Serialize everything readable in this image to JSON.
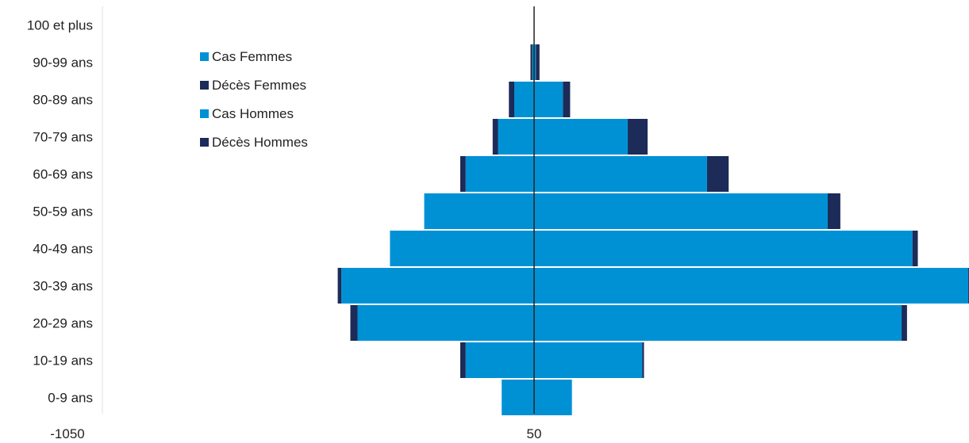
{
  "chart_data": {
    "type": "bar",
    "orientation": "horizontal",
    "layout": "population-pyramid",
    "categories": [
      "0-9 ans",
      "10-19 ans",
      "20-29 ans",
      "30-39 ans",
      "40-49 ans",
      "50-59 ans",
      "60-69 ans",
      "70-79 ans",
      "80-89 ans",
      "90-99 ans",
      "100 et plus"
    ],
    "series": [
      {
        "name": "Cas Femmes",
        "side": "left",
        "color": "#0091d5",
        "values": [
          18,
          38,
          98,
          107,
          80,
          61,
          38,
          20,
          11,
          1,
          0
        ]
      },
      {
        "name": "Décès Femmes",
        "side": "left",
        "color": "#1c2b58",
        "values": [
          0,
          3,
          4,
          2,
          0,
          0,
          3,
          3,
          3,
          1,
          0
        ]
      },
      {
        "name": "Cas Hommes",
        "side": "right",
        "color": "#0091d5",
        "values": [
          21,
          60,
          204,
          241,
          210,
          163,
          96,
          52,
          16,
          1,
          0
        ]
      },
      {
        "name": "Décès Hommes",
        "side": "right",
        "color": "#1c2b58",
        "values": [
          0,
          1,
          3,
          2,
          3,
          7,
          12,
          11,
          4,
          2,
          0
        ]
      }
    ],
    "xaxis_tick_labels": [
      "-1050",
      "50"
    ],
    "legend_position": "top-left",
    "grid": false
  }
}
